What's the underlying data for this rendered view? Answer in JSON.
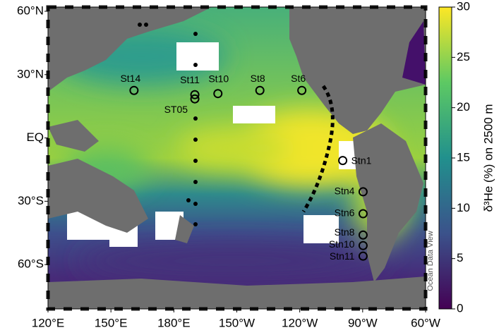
{
  "map": {
    "xlim": [
      120,
      300
    ],
    "ylim": [
      -81,
      62
    ],
    "xticks": [
      {
        "value": 120,
        "label": "120°E"
      },
      {
        "value": 150,
        "label": "150°E"
      },
      {
        "value": 180,
        "label": "180°E"
      },
      {
        "value": 210,
        "label": "150°W"
      },
      {
        "value": 240,
        "label": "120°W"
      },
      {
        "value": 270,
        "label": "90°W"
      },
      {
        "value": 300,
        "label": "60°W"
      }
    ],
    "yticks": [
      {
        "value": 60,
        "label": "60°N"
      },
      {
        "value": 30,
        "label": "30°N"
      },
      {
        "value": 0,
        "label": "EQ"
      },
      {
        "value": -30,
        "label": "30°S"
      },
      {
        "value": -60,
        "label": "60°S"
      }
    ],
    "stations": [
      {
        "name": "St14",
        "lon": 161,
        "lat": 22.5
      },
      {
        "name": "St11",
        "lon": 190,
        "lat": 20.5
      },
      {
        "name": "ST05",
        "lon": 190,
        "lat": 18.5
      },
      {
        "name": "St10",
        "lon": 201,
        "lat": 21
      },
      {
        "name": "St8",
        "lon": 221,
        "lat": 22.5
      },
      {
        "name": "St6",
        "lon": 241,
        "lat": 22.5
      },
      {
        "name": "Stn1",
        "lon": 260.5,
        "lat": -10.7
      },
      {
        "name": "Stn4",
        "lon": 270.2,
        "lat": -25.5
      },
      {
        "name": "Stn6",
        "lon": 270.2,
        "lat": -35.9
      },
      {
        "name": "Stn8",
        "lon": 270.2,
        "lat": -46
      },
      {
        "name": "Stn10",
        "lon": 270.2,
        "lat": -51
      },
      {
        "name": "Stn11",
        "lon": 270.2,
        "lat": -56
      }
    ],
    "watermark": "Ocean Data View",
    "colorbar": {
      "label": "δ³He (%) on 2500 m",
      "lim": [
        0,
        30
      ],
      "ticks": [
        0,
        5,
        10,
        15,
        20,
        25,
        30
      ],
      "colors": [
        "#440154",
        "#3b528b",
        "#21908d",
        "#5dc963",
        "#fde725"
      ]
    }
  }
}
